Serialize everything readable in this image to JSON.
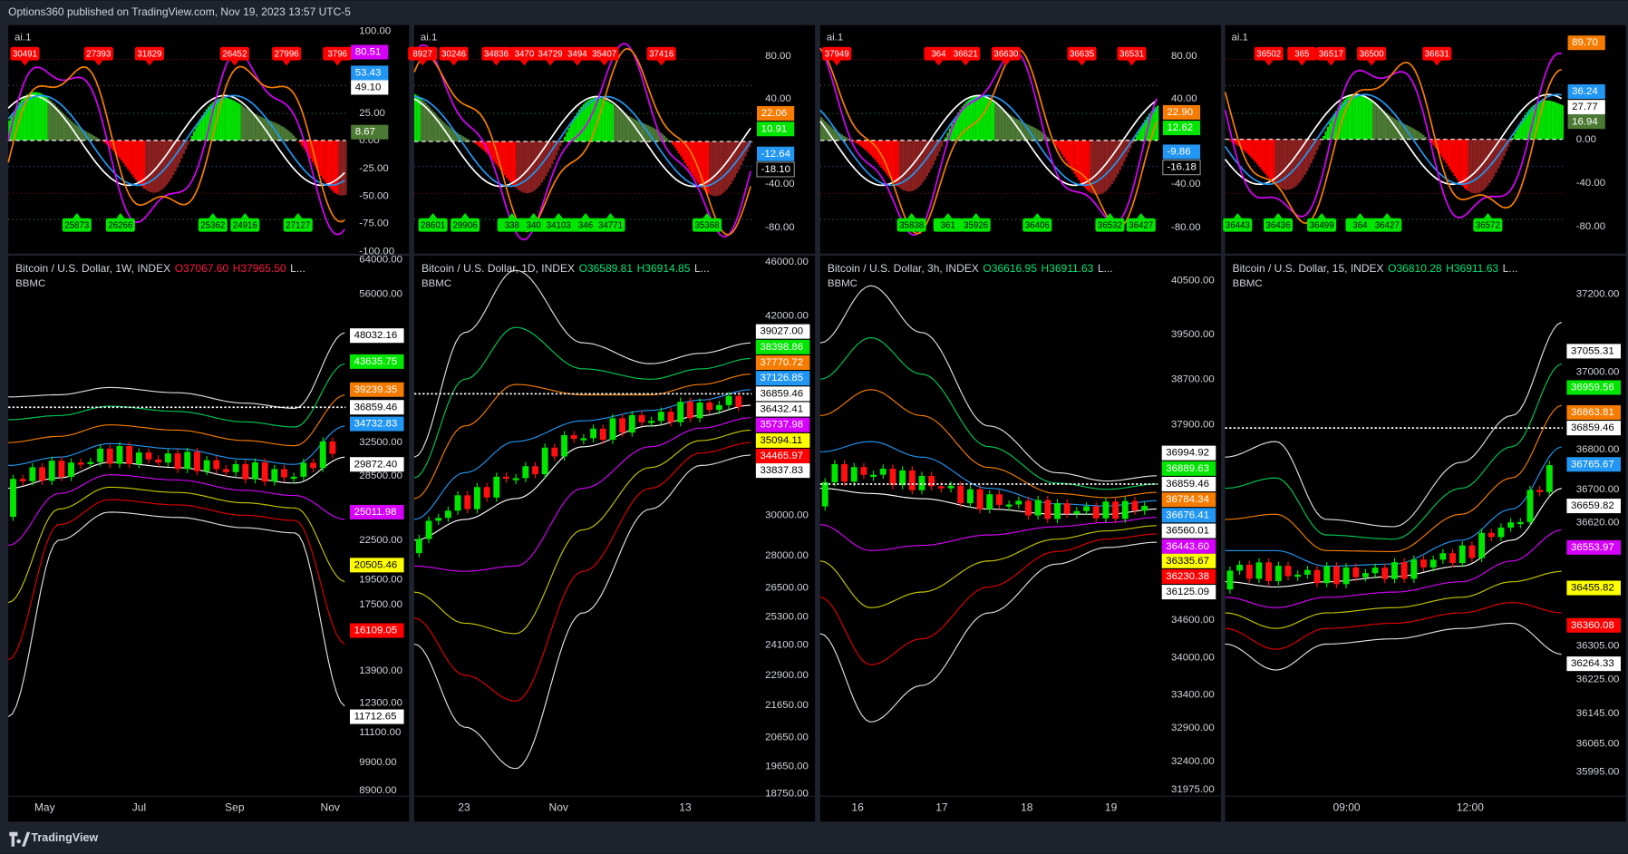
{
  "header": "Options360 published on TradingView.com, Nov 19, 2023 13:57 UTC-5",
  "footer": "TradingView",
  "panels": [
    {
      "indicator": "ai.1",
      "osc_axis": [
        "100.00",
        "25.00",
        "0.00",
        "-25.00",
        "-50.00",
        "-75.00",
        "-100.00"
      ],
      "osc_tags": [
        {
          "text": "80.51",
          "color": "#d500f9"
        },
        {
          "text": "53.43",
          "color": "#2196f3"
        },
        {
          "text": "49.10",
          "color": "#ffffff"
        },
        {
          "text": "8.67",
          "color": "#4c7a34"
        }
      ],
      "signals_sell": [
        "30491",
        "27393",
        "31829",
        "26452",
        "27996",
        "3796"
      ],
      "signals_buy": [
        "25873",
        "26266",
        "25362",
        "24916",
        "27127"
      ],
      "symbol": "Bitcoin / U.S. Dollar, 1W, INDEX",
      "open": "O37067.60",
      "high": "H37965.50",
      "low": "L...",
      "ohlc_color": "#ff1744",
      "study": "BBMC",
      "price_axis": [
        "64000.00",
        "56000.00",
        "32500.00",
        "28500.00",
        "22500.00",
        "19500.00",
        "17500.00",
        "13900.00",
        "12300.00",
        "11100.00",
        "9900.00",
        "8900.00"
      ],
      "price_tags": [
        {
          "text": "48032.16",
          "color": "#ffffff"
        },
        {
          "text": "43635.75",
          "color": "#00e600"
        },
        {
          "text": "39239.35",
          "color": "#f57c00"
        },
        {
          "text": "36859.46",
          "color": "#ffffff"
        },
        {
          "text": "34732.83",
          "color": "#2196f3"
        },
        {
          "text": "29872.40",
          "color": "#ffffff"
        },
        {
          "text": "25011.98",
          "color": "#d500f9"
        },
        {
          "text": "20505.46",
          "color": "#ffff00"
        },
        {
          "text": "16109.05",
          "color": "#ff0000"
        },
        {
          "text": "11712.65",
          "color": "#ffffff"
        }
      ],
      "time_axis": [
        "May",
        "Jul",
        "Sep",
        "Nov"
      ]
    },
    {
      "indicator": "ai.1",
      "osc_axis": [
        "80.00",
        "40.00",
        "-40.00",
        "-80.00"
      ],
      "osc_tags": [
        {
          "text": "22.06",
          "color": "#f57c00"
        },
        {
          "text": "10.91",
          "color": "#00e600"
        },
        {
          "text": "-12.64",
          "color": "#2196f3"
        },
        {
          "text": "-18.10",
          "color": "#000000"
        }
      ],
      "signals_sell": [
        "8927",
        "30246",
        "34836",
        "3470",
        "34729",
        "3494",
        "35407",
        "37416"
      ],
      "signals_buy": [
        "28601",
        "29906",
        "338",
        "340",
        "34103",
        "346",
        "34771",
        "35368"
      ],
      "symbol": "Bitcoin / U.S. Dollar, 1D, INDEX",
      "open": "O36589.81",
      "high": "H36914.85",
      "low": "L...",
      "ohlc_color": "#00e676",
      "study": "BBMC",
      "price_axis": [
        "46000.00",
        "42000.00",
        "30000.00",
        "28000.00",
        "26500.00",
        "25300.00",
        "24100.00",
        "22900.00",
        "21650.00",
        "20650.00",
        "19650.00",
        "18750.00"
      ],
      "price_tags": [
        {
          "text": "39027.00",
          "color": "#ffffff"
        },
        {
          "text": "38398.86",
          "color": "#00e600"
        },
        {
          "text": "37770.72",
          "color": "#f57c00"
        },
        {
          "text": "37126.85",
          "color": "#2196f3"
        },
        {
          "text": "36859.46",
          "color": "#ffffff"
        },
        {
          "text": "36432.41",
          "color": "#ffffff"
        },
        {
          "text": "35737.98",
          "color": "#d500f9"
        },
        {
          "text": "35094.11",
          "color": "#ffff00"
        },
        {
          "text": "34465.97",
          "color": "#ff0000"
        },
        {
          "text": "33837.83",
          "color": "#ffffff"
        }
      ],
      "time_axis": [
        "23",
        "Nov",
        "13"
      ]
    },
    {
      "indicator": "ai.1",
      "osc_axis": [
        "80.00",
        "40.00",
        "-40.00",
        "-80.00"
      ],
      "osc_tags": [
        {
          "text": "22.90",
          "color": "#f57c00"
        },
        {
          "text": "12.62",
          "color": "#00e600"
        },
        {
          "text": "-9.86",
          "color": "#2196f3"
        },
        {
          "text": "-16.18",
          "color": "#000000"
        }
      ],
      "signals_sell": [
        "37949",
        "364",
        "36621",
        "36630",
        "36635",
        "36531"
      ],
      "signals_buy": [
        "35838",
        "361",
        "35926",
        "36406",
        "36532",
        "36427"
      ],
      "symbol": "Bitcoin / U.S. Dollar, 3h, INDEX",
      "open": "O36616.95",
      "high": "H36911.63",
      "low": "L...",
      "ohlc_color": "#00e676",
      "study": "BBMC",
      "price_axis": [
        "40500.00",
        "39500.00",
        "38700.00",
        "37900.00",
        "34600.00",
        "34000.00",
        "33400.00",
        "32900.00",
        "32400.00",
        "31975.00"
      ],
      "price_tags": [
        {
          "text": "36994.92",
          "color": "#ffffff"
        },
        {
          "text": "36889.63",
          "color": "#00e600"
        },
        {
          "text": "36859.46",
          "color": "#ffffff"
        },
        {
          "text": "36784.34",
          "color": "#f57c00"
        },
        {
          "text": "36676.41",
          "color": "#2196f3"
        },
        {
          "text": "36560.01",
          "color": "#ffffff"
        },
        {
          "text": "36443.60",
          "color": "#d500f9"
        },
        {
          "text": "36335.67",
          "color": "#ffff00"
        },
        {
          "text": "36230.38",
          "color": "#ff0000"
        },
        {
          "text": "36125.09",
          "color": "#ffffff"
        }
      ],
      "time_axis": [
        "16",
        "17",
        "18",
        "19"
      ]
    },
    {
      "indicator": "ai.1",
      "osc_axis": [
        "0.00",
        "-40.00",
        "-80.00"
      ],
      "osc_tags": [
        {
          "text": "89.70",
          "color": "#f57c00"
        },
        {
          "text": "36.24",
          "color": "#2196f3"
        },
        {
          "text": "27.77",
          "color": "#ffffff"
        },
        {
          "text": "16.94",
          "color": "#4c7a34"
        }
      ],
      "signals_sell": [
        "36502",
        "365",
        "36517",
        "36500",
        "36631"
      ],
      "signals_buy": [
        "36443",
        "36436",
        "36499",
        "364",
        "36427",
        "36572"
      ],
      "symbol": "Bitcoin / U.S. Dollar, 15, INDEX",
      "open": "O36810.28",
      "high": "H36911.63",
      "low": "L...",
      "ohlc_color": "#00e676",
      "study": "BBMC",
      "price_axis": [
        "37200.00",
        "37000.00",
        "36800.00",
        "36700.00",
        "36620.00",
        "36305.00",
        "36225.00",
        "36145.00",
        "36065.00",
        "35995.00"
      ],
      "price_tags": [
        {
          "text": "37055.31",
          "color": "#ffffff"
        },
        {
          "text": "36959.56",
          "color": "#00e600"
        },
        {
          "text": "36863.81",
          "color": "#f57c00"
        },
        {
          "text": "36859.46",
          "color": "#ffffff"
        },
        {
          "text": "36765.67",
          "color": "#2196f3"
        },
        {
          "text": "36659.82",
          "color": "#ffffff"
        },
        {
          "text": "36553.97",
          "color": "#d500f9"
        },
        {
          "text": "36455.82",
          "color": "#ffff00"
        },
        {
          "text": "36360.08",
          "color": "#ff0000"
        },
        {
          "text": "36264.33",
          "color": "#ffffff"
        }
      ],
      "time_axis": [
        "09:00",
        "12:00"
      ]
    }
  ]
}
